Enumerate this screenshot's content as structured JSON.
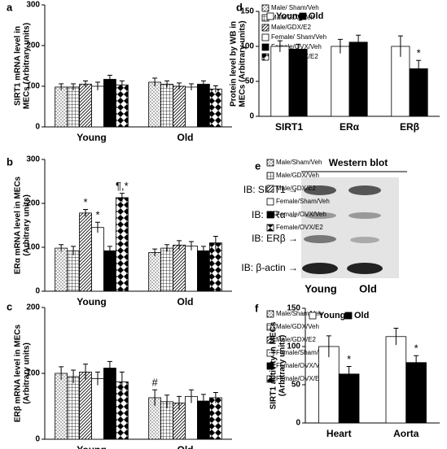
{
  "chart_data": [
    {
      "type": "bar",
      "panel": "a",
      "ylabel": [
        "SIRT1 mRNA level in",
        "MECs (Arbitrary units)"
      ],
      "categories": [
        "Young",
        "Old"
      ],
      "ylim": [
        0,
        300
      ],
      "yticks": [
        0,
        100,
        200,
        300
      ],
      "series": [
        {
          "name": "Male/ Sham/Veh",
          "color": "#ffffff",
          "pattern": "dots",
          "values": [
            98,
            110
          ],
          "errors": [
            8,
            10
          ]
        },
        {
          "name": "Male/GDX/Veh",
          "color": "#ffffff",
          "pattern": "grid",
          "values": [
            98,
            105
          ],
          "errors": [
            8,
            8
          ]
        },
        {
          "name": "Male/GDX/E2",
          "color": "#ffffff",
          "pattern": "diagonal",
          "values": [
            105,
            100
          ],
          "errors": [
            8,
            8
          ]
        },
        {
          "name": "Female/ Sham/Veh",
          "color": "#ffffff",
          "pattern": "none",
          "values": [
            100,
            98
          ],
          "errors": [
            10,
            8
          ]
        },
        {
          "name": "Female/OVX/Veh",
          "color": "#000000",
          "pattern": "none",
          "values": [
            117,
            105
          ],
          "errors": [
            10,
            8
          ]
        },
        {
          "name": "Female/OVX/E2",
          "color": "#ffffff",
          "pattern": "diamond",
          "values": [
            103,
            93
          ],
          "errors": [
            10,
            8
          ]
        }
      ]
    },
    {
      "type": "bar",
      "panel": "b",
      "ylabel": [
        "ERα mRNA level in MECs",
        "(Arbitrary units)"
      ],
      "categories": [
        "Young",
        "Old"
      ],
      "ylim": [
        0,
        300
      ],
      "yticks": [
        0,
        100,
        200,
        300
      ],
      "series": [
        {
          "name": "Male/Sham/Veh",
          "color": "#ffffff",
          "pattern": "dots",
          "values": [
            98,
            88
          ],
          "errors": [
            8,
            8
          ],
          "annotations": [
            null,
            null
          ]
        },
        {
          "name": "Male/GDX/Veh",
          "color": "#ffffff",
          "pattern": "grid",
          "values": [
            92,
            98
          ],
          "errors": [
            10,
            8
          ],
          "annotations": [
            null,
            null
          ]
        },
        {
          "name": "Male/GDX/E2",
          "color": "#ffffff",
          "pattern": "diagonal",
          "values": [
            178,
            105
          ],
          "errors": [
            8,
            10
          ],
          "annotations": [
            "*",
            null
          ]
        },
        {
          "name": "Female/Sham/Veh",
          "color": "#ffffff",
          "pattern": "none",
          "values": [
            145,
            103
          ],
          "errors": [
            12,
            10
          ],
          "annotations": [
            "*",
            null
          ]
        },
        {
          "name": "Female/OVX/Veh",
          "color": "#000000",
          "pattern": "none",
          "values": [
            92,
            92
          ],
          "errors": [
            10,
            10
          ],
          "annotations": [
            null,
            null
          ]
        },
        {
          "name": "Female/OVX/E2",
          "color": "#ffffff",
          "pattern": "diamond",
          "values": [
            213,
            110
          ],
          "errors": [
            10,
            15
          ],
          "annotations": [
            "¶,*",
            null
          ]
        }
      ]
    },
    {
      "type": "bar",
      "panel": "c",
      "ylabel": [
        "ERβ mRNA level in MECs",
        "(Arbitrary units)"
      ],
      "categories": [
        "Young",
        "Old"
      ],
      "ylim": [
        0,
        200
      ],
      "yticks": [
        0,
        100,
        200
      ],
      "series": [
        {
          "name": "Male/Sham/Veh",
          "color": "#ffffff",
          "pattern": "dots",
          "values": [
            100,
            63
          ],
          "errors": [
            10,
            12
          ],
          "annotations": [
            null,
            "#"
          ]
        },
        {
          "name": "Male/GDX/Veh",
          "color": "#ffffff",
          "pattern": "grid",
          "values": [
            95,
            57
          ],
          "errors": [
            10,
            10
          ],
          "annotations": [
            null,
            null
          ]
        },
        {
          "name": "Male/GDX/E2",
          "color": "#ffffff",
          "pattern": "diagonal",
          "values": [
            102,
            55
          ],
          "errors": [
            12,
            10
          ],
          "annotations": [
            null,
            null
          ]
        },
        {
          "name": "Female/Sham/Veh",
          "color": "#ffffff",
          "pattern": "none",
          "values": [
            92,
            65
          ],
          "errors": [
            10,
            10
          ],
          "annotations": [
            null,
            null
          ]
        },
        {
          "name": "Female/OVX/Veh",
          "color": "#000000",
          "pattern": "none",
          "values": [
            108,
            58
          ],
          "errors": [
            10,
            10
          ],
          "annotations": [
            null,
            null
          ]
        },
        {
          "name": "Female/OVX/E2",
          "color": "#ffffff",
          "pattern": "diamond",
          "values": [
            87,
            63
          ],
          "errors": [
            15,
            8
          ],
          "annotations": [
            null,
            null
          ]
        }
      ]
    },
    {
      "type": "bar",
      "panel": "d",
      "ylabel": [
        "Protein level by WB in",
        "MECs (Arbitrary units)"
      ],
      "categories": [
        "SIRT1",
        "ERα",
        "ERβ"
      ],
      "ylim": [
        0,
        150
      ],
      "yticks": [
        0,
        50,
        100,
        150
      ],
      "series": [
        {
          "name": "Young",
          "color": "#ffffff",
          "pattern": "none",
          "values": [
            100,
            100,
            100
          ],
          "errors": [
            8,
            10,
            15
          ],
          "annotations": [
            null,
            null,
            null
          ]
        },
        {
          "name": "Old",
          "color": "#000000",
          "pattern": "none",
          "values": [
            96,
            106,
            68
          ],
          "errors": [
            7,
            10,
            12
          ],
          "annotations": [
            null,
            null,
            "*"
          ]
        }
      ]
    },
    {
      "type": "bar",
      "panel": "f",
      "ylabel": [
        "SIRT1 activity in MECs",
        "(Arbitrary units)"
      ],
      "categories": [
        "Heart",
        "Aorta"
      ],
      "ylim": [
        0,
        150
      ],
      "yticks": [
        0,
        50,
        100,
        150
      ],
      "series": [
        {
          "name": "Young",
          "color": "#ffffff",
          "pattern": "none",
          "values": [
            100,
            113
          ],
          "errors": [
            14,
            11
          ],
          "annotations": [
            null,
            null
          ]
        },
        {
          "name": "Old",
          "color": "#000000",
          "pattern": "none",
          "values": [
            64,
            79
          ],
          "errors": [
            10,
            9
          ],
          "annotations": [
            "*",
            "*"
          ]
        }
      ]
    }
  ],
  "western_blot": {
    "panel": "e",
    "title": "Western blot",
    "rows": [
      "IB: SIRT1 →",
      "IB: ERα →",
      "IB: ERβ →",
      "IB: β-actin →"
    ],
    "lanes": [
      "Young",
      "Old"
    ]
  }
}
